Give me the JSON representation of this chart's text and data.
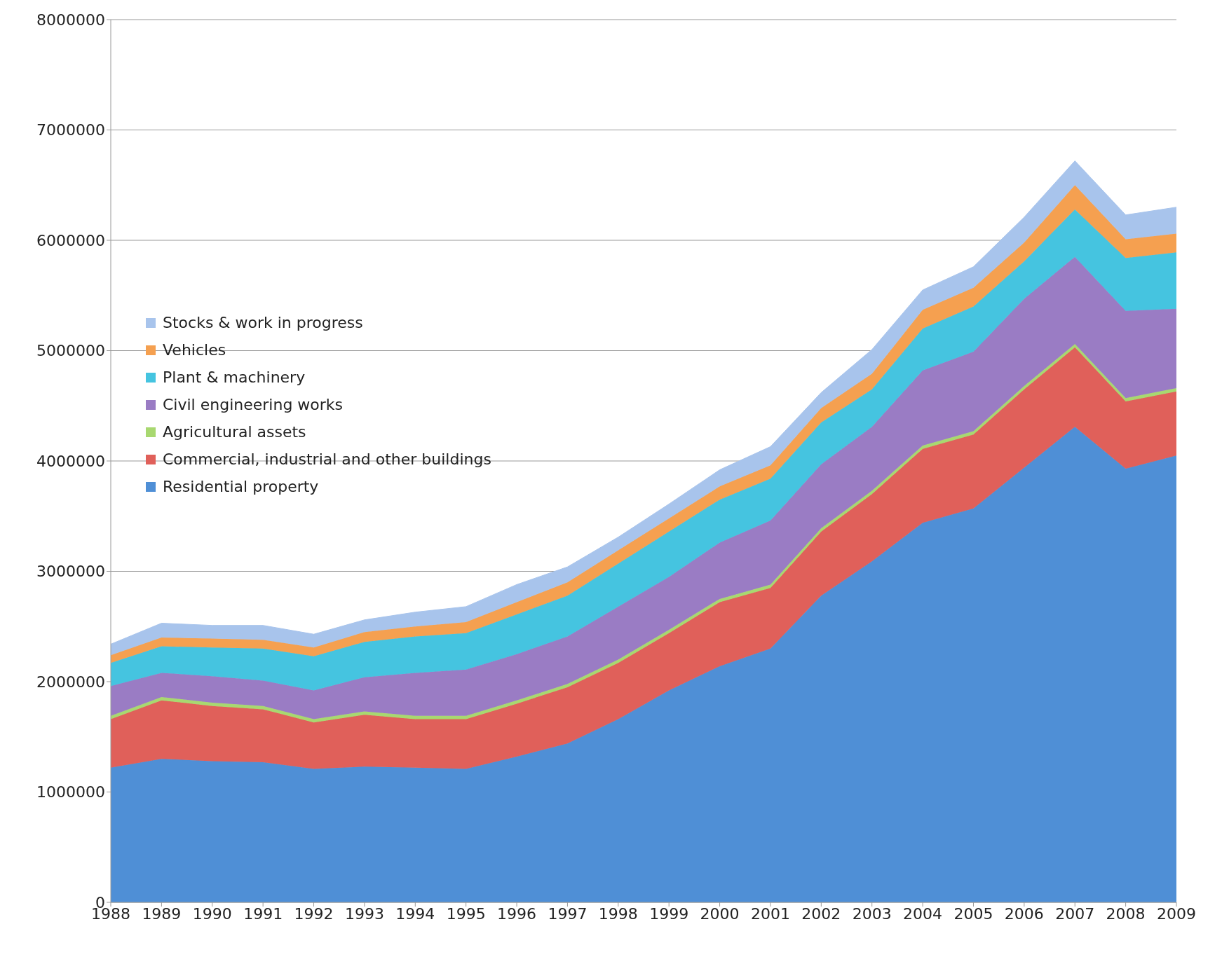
{
  "chart_data": {
    "type": "area",
    "stacked": true,
    "categories": [
      "1988",
      "1989",
      "1990",
      "1991",
      "1992",
      "1993",
      "1994",
      "1995",
      "1996",
      "1997",
      "1998",
      "1999",
      "2000",
      "2001",
      "2002",
      "2003",
      "2004",
      "2005",
      "2006",
      "2007",
      "2008",
      "2009"
    ],
    "series": [
      {
        "name": "Residential property",
        "color": "#4f8fd6",
        "values": [
          1220000,
          1300000,
          1280000,
          1270000,
          1210000,
          1230000,
          1220000,
          1210000,
          1320000,
          1440000,
          1660000,
          1920000,
          2140000,
          2300000,
          2780000,
          3090000,
          3440000,
          3570000,
          3940000,
          4310000,
          3930000,
          4050000
        ]
      },
      {
        "name": "Commercial, industrial and other buildings",
        "color": "#e0605a",
        "values": [
          440000,
          530000,
          500000,
          480000,
          420000,
          470000,
          440000,
          450000,
          480000,
          510000,
          510000,
          520000,
          580000,
          550000,
          580000,
          610000,
          670000,
          670000,
          710000,
          720000,
          610000,
          580000
        ]
      },
      {
        "name": "Agricultural assets",
        "color": "#a8d870",
        "values": [
          30000,
          30000,
          30000,
          30000,
          30000,
          30000,
          30000,
          30000,
          30000,
          30000,
          30000,
          30000,
          30000,
          30000,
          30000,
          30000,
          30000,
          30000,
          30000,
          30000,
          30000,
          30000
        ]
      },
      {
        "name": "Civil engineering works",
        "color": "#9a7cc4",
        "values": [
          270000,
          220000,
          240000,
          230000,
          260000,
          310000,
          390000,
          420000,
          420000,
          430000,
          480000,
          480000,
          510000,
          580000,
          580000,
          580000,
          680000,
          720000,
          790000,
          790000,
          790000,
          720000
        ]
      },
      {
        "name": "Plant & machinery",
        "color": "#45c4e0",
        "values": [
          210000,
          240000,
          260000,
          290000,
          310000,
          320000,
          330000,
          330000,
          360000,
          370000,
          390000,
          410000,
          390000,
          380000,
          380000,
          340000,
          380000,
          410000,
          340000,
          430000,
          480000,
          510000
        ]
      },
      {
        "name": "Vehicles",
        "color": "#f5a050",
        "values": [
          70000,
          80000,
          80000,
          80000,
          80000,
          90000,
          90000,
          100000,
          110000,
          120000,
          120000,
          120000,
          120000,
          120000,
          130000,
          140000,
          170000,
          170000,
          170000,
          220000,
          170000,
          170000
        ]
      },
      {
        "name": "Stocks & work in progress",
        "color": "#a8c4ec",
        "values": [
          100000,
          130000,
          120000,
          130000,
          120000,
          110000,
          130000,
          140000,
          160000,
          140000,
          120000,
          130000,
          150000,
          170000,
          140000,
          220000,
          180000,
          190000,
          230000,
          220000,
          220000,
          240000
        ]
      }
    ],
    "ylim": [
      0,
      8000000
    ],
    "yticks": [
      0,
      1000000,
      2000000,
      3000000,
      4000000,
      5000000,
      6000000,
      7000000,
      8000000
    ],
    "grid": "y",
    "legend": "top left"
  }
}
